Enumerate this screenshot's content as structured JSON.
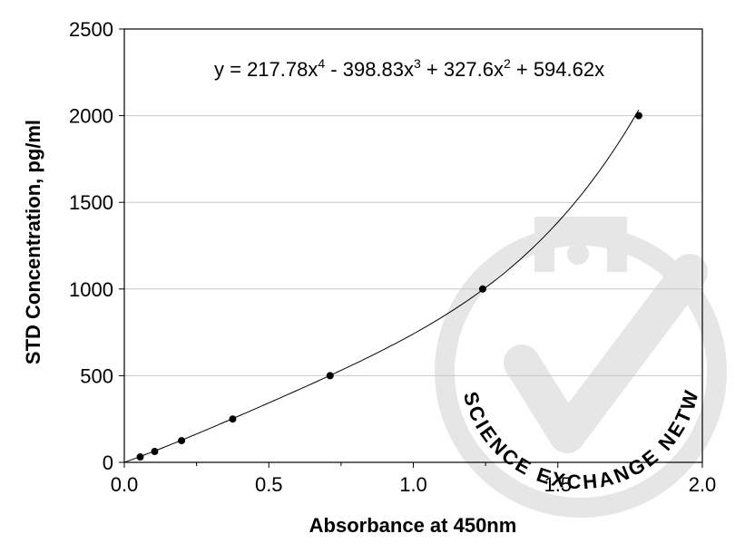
{
  "chart_data": {
    "type": "scatter",
    "title": "",
    "xlabel": "Absorbance at 450nm",
    "ylabel": "STD Concentration, pg/ml",
    "xlim": [
      0.0,
      2.0
    ],
    "ylim": [
      0,
      2500
    ],
    "x_ticks": [
      "0.0",
      "0.5",
      "1.0",
      "1.5",
      "2.0"
    ],
    "y_ticks": [
      "0",
      "500",
      "1000",
      "1500",
      "2000",
      "2500"
    ],
    "grid": "horizontal",
    "legend": "none",
    "points": [
      {
        "x": 0.055,
        "y": 31.25
      },
      {
        "x": 0.105,
        "y": 62.5
      },
      {
        "x": 0.198,
        "y": 125
      },
      {
        "x": 0.375,
        "y": 250
      },
      {
        "x": 0.712,
        "y": 500
      },
      {
        "x": 1.24,
        "y": 1000
      },
      {
        "x": 1.78,
        "y": 2000
      }
    ],
    "trendline": {
      "type": "polynomial",
      "coefficients": [
        217.78,
        -398.83,
        327.6,
        594.62,
        0
      ],
      "x_range": [
        0.0,
        1.78
      ]
    },
    "equation": {
      "parts": [
        "y = 217.78x",
        "4",
        " - 398.83x",
        "3",
        " + 327.6x",
        "2",
        " + 594.62x"
      ]
    },
    "watermark_text": "THE SCIENCE EXCHANGE NETWORK",
    "colors": {
      "points": "#000000",
      "line": "#000000",
      "grid": "#c8c8c8",
      "watermark": "#e4e4e4"
    }
  }
}
